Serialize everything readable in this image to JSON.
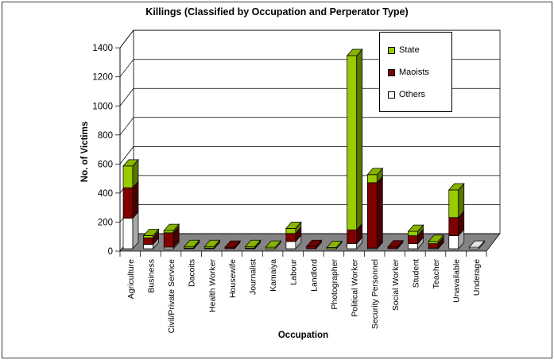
{
  "chart_data": {
    "type": "bar",
    "stacked": true,
    "title": "Killings (Classified by Occupation and Perperator Type)",
    "xlabel": "Occupation",
    "ylabel": "No. of Victims",
    "ylim": [
      0,
      1400
    ],
    "ytick_step": 200,
    "yticks": [
      0,
      200,
      400,
      600,
      800,
      1000,
      1200,
      1400
    ],
    "grid": "horizontal-3d-back-wall",
    "legend_position": "top-right-inside",
    "legend_entries": [
      "State",
      "Maoists",
      "Others"
    ],
    "categories": [
      "Agriculture",
      "Business",
      "Civil/Private Service",
      "Dacoits",
      "Health Worker",
      "Housewife",
      "Journalist",
      "Kamaiya",
      "Labour",
      "Landlord",
      "Photographer",
      "Political Worker",
      "Security Personnel",
      "Social Worker",
      "Student",
      "Teacher",
      "Unavailable",
      "Underage"
    ],
    "series": [
      {
        "name": "Others",
        "color": "#FFFFFF",
        "values": [
          210,
          30,
          10,
          0,
          0,
          0,
          0,
          0,
          50,
          0,
          0,
          35,
          5,
          0,
          35,
          5,
          90,
          10
        ]
      },
      {
        "name": "Maoists",
        "color": "#800000",
        "values": [
          210,
          45,
          100,
          5,
          5,
          10,
          5,
          0,
          55,
          15,
          0,
          95,
          450,
          12,
          55,
          30,
          125,
          0
        ]
      },
      {
        "name": "State",
        "color": "#99CC00",
        "values": [
          150,
          15,
          15,
          10,
          10,
          0,
          10,
          10,
          35,
          0,
          8,
          1200,
          55,
          0,
          30,
          15,
          190,
          0
        ]
      }
    ],
    "colors": {
      "floor": "#848284",
      "wall_background": "#FFFFFF",
      "gridline": "#000000",
      "state_green": "#99CC00",
      "maoists_dark_red": "#800000",
      "others_white": "#FFFFFF"
    }
  }
}
